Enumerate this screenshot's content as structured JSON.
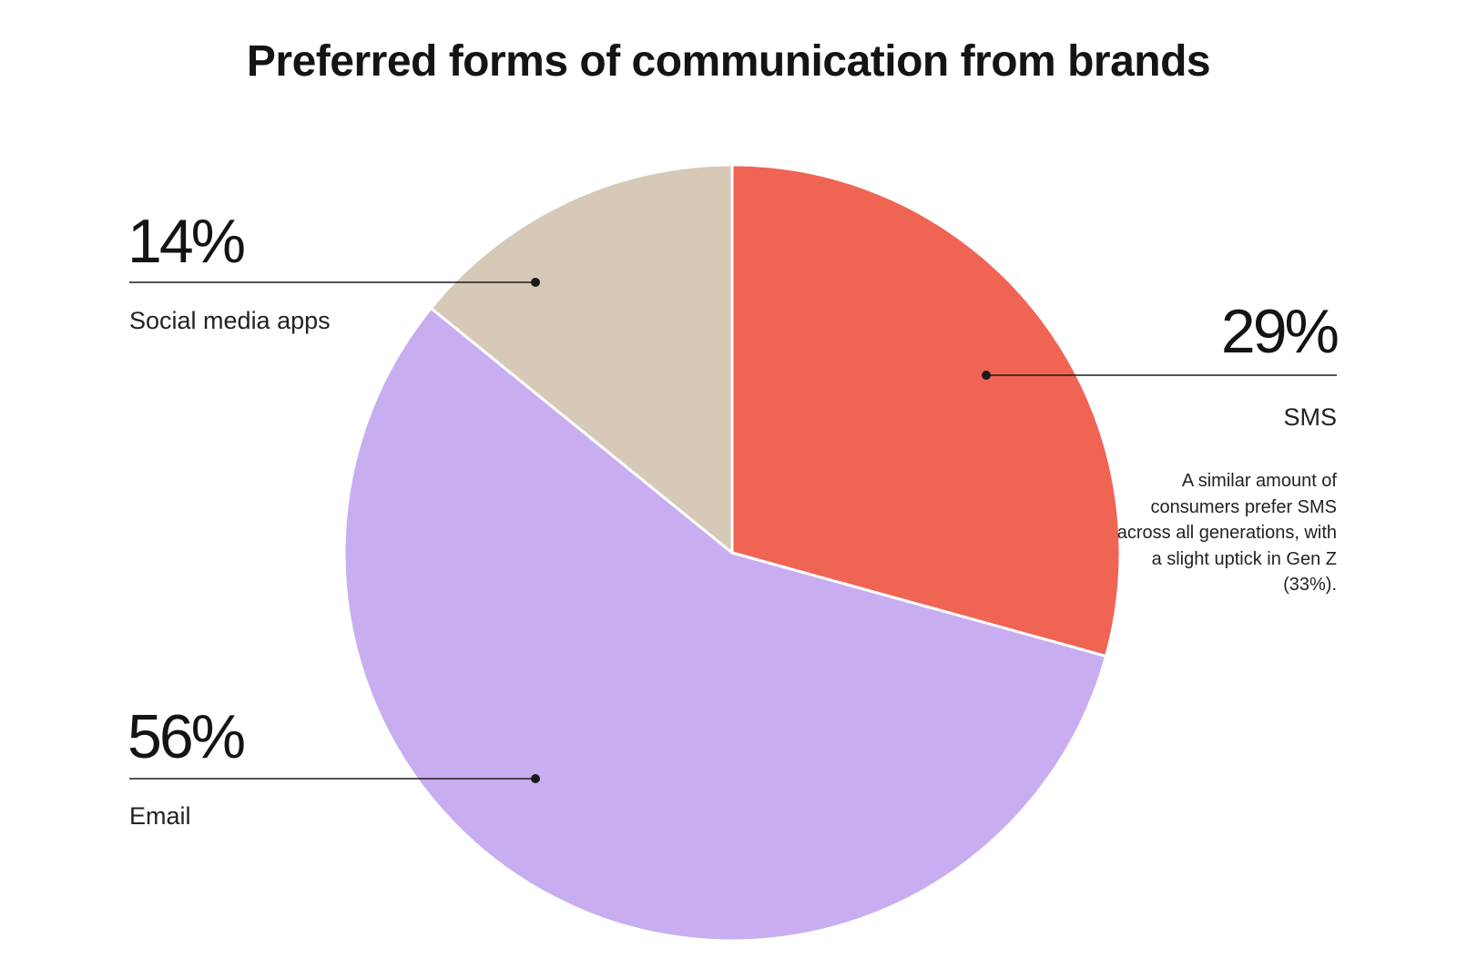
{
  "chart_data": {
    "type": "pie",
    "title": "Preferred forms of communication from brands",
    "slices": [
      {
        "label": "SMS",
        "value": 29,
        "display": "29%",
        "color": "#EF6453"
      },
      {
        "label": "Email",
        "value": 56,
        "display": "56%",
        "color": "#C8AEF0"
      },
      {
        "label": "Social media apps",
        "value": 14,
        "display": "14%",
        "color": "#D6C9B7"
      }
    ],
    "annotations": [
      {
        "slice": "SMS",
        "text": "A similar amount of consumers prefer SMS across all generations, with a slight uptick in Gen Z (33%)."
      }
    ],
    "start": "12 o'clock",
    "direction": "clockwise"
  }
}
